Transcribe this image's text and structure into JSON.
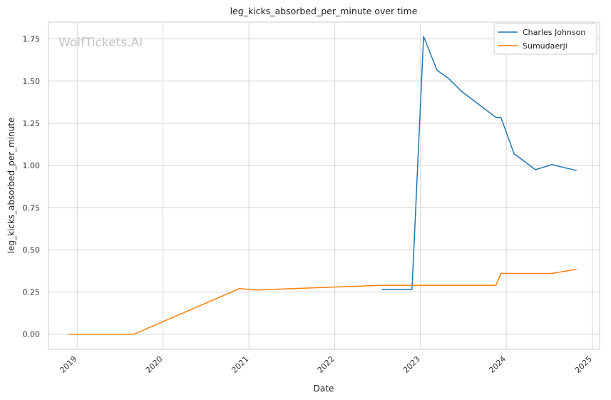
{
  "watermark": "WolfTickets.AI",
  "chart_data": {
    "type": "line",
    "title": "leg_kicks_absorbed_per_minute over time",
    "xlabel": "Date",
    "ylabel": "leg_kicks_absorbed_per_minute",
    "xlim": [
      "2018-09-01",
      "2025-02-01"
    ],
    "ylim": [
      -0.09,
      1.85
    ],
    "x_ticks": [
      {
        "date": "2019-01-01",
        "label": "2019"
      },
      {
        "date": "2020-01-01",
        "label": "2020"
      },
      {
        "date": "2021-01-01",
        "label": "2021"
      },
      {
        "date": "2022-01-01",
        "label": "2022"
      },
      {
        "date": "2023-01-01",
        "label": "2023"
      },
      {
        "date": "2024-01-01",
        "label": "2024"
      },
      {
        "date": "2025-01-01",
        "label": "2025"
      }
    ],
    "y_ticks": [
      {
        "value": 0.0,
        "label": "0.00"
      },
      {
        "value": 0.25,
        "label": "0.25"
      },
      {
        "value": 0.5,
        "label": "0.50"
      },
      {
        "value": 0.75,
        "label": "0.75"
      },
      {
        "value": 1.0,
        "label": "1.00"
      },
      {
        "value": 1.25,
        "label": "1.25"
      },
      {
        "value": 1.5,
        "label": "1.50"
      },
      {
        "value": 1.75,
        "label": "1.75"
      }
    ],
    "grid": true,
    "legend_position": "top-right",
    "series": [
      {
        "name": "Charles Johnson",
        "color": "#1f77b4",
        "points": [
          {
            "x": "2022-07-20",
            "y": 0.265
          },
          {
            "x": "2022-11-26",
            "y": 0.265
          },
          {
            "x": "2023-01-14",
            "y": 1.765
          },
          {
            "x": "2023-03-12",
            "y": 1.565
          },
          {
            "x": "2023-05-01",
            "y": 1.515
          },
          {
            "x": "2023-06-24",
            "y": 1.44
          },
          {
            "x": "2023-11-18",
            "y": 1.285
          },
          {
            "x": "2023-12-09",
            "y": 1.285
          },
          {
            "x": "2024-02-03",
            "y": 1.07
          },
          {
            "x": "2024-05-04",
            "y": 0.975
          },
          {
            "x": "2024-07-13",
            "y": 1.005
          },
          {
            "x": "2024-10-26",
            "y": 0.97
          }
        ]
      },
      {
        "name": "Sumudaerji",
        "color": "#ff7f0e",
        "points": [
          {
            "x": "2018-11-24",
            "y": 0.0
          },
          {
            "x": "2019-08-31",
            "y": 0.0
          },
          {
            "x": "2020-11-21",
            "y": 0.27
          },
          {
            "x": "2021-01-30",
            "y": 0.262
          },
          {
            "x": "2022-07-20",
            "y": 0.29
          },
          {
            "x": "2023-11-18",
            "y": 0.29
          },
          {
            "x": "2023-12-09",
            "y": 0.36
          },
          {
            "x": "2024-07-13",
            "y": 0.36
          },
          {
            "x": "2024-10-26",
            "y": 0.385
          }
        ]
      }
    ]
  }
}
